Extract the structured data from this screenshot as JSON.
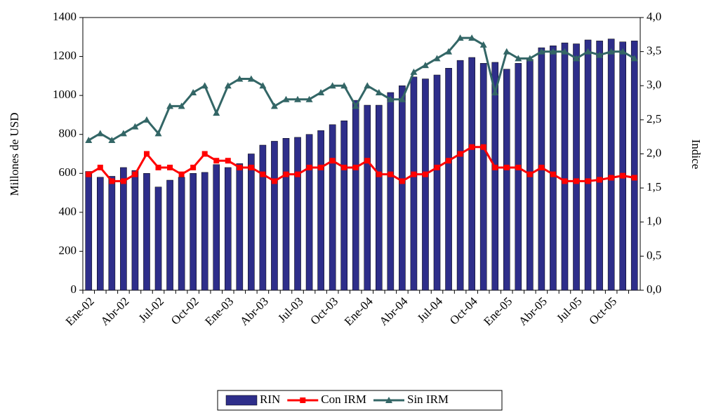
{
  "chart_data": {
    "type": "bar_line",
    "y_label": "Millones de USD",
    "y2_label": "Indice",
    "categories": [
      "Ene-02",
      null,
      null,
      "Abr-02",
      null,
      null,
      "Jul-02",
      null,
      null,
      "Oct-02",
      null,
      null,
      "Ene-03",
      null,
      null,
      "Abr-03",
      null,
      null,
      "Jul-03",
      null,
      null,
      "Oct-03",
      null,
      null,
      "Ene-04",
      null,
      null,
      "Abr-04",
      null,
      null,
      "Jul-04",
      null,
      null,
      "Oct-04",
      null,
      null,
      "Ene-05",
      null,
      null,
      "Abr-05",
      null,
      null,
      "Jul-05",
      null,
      null,
      "Oct-05",
      null,
      null
    ],
    "series": [
      {
        "name": "RIN",
        "color": "#2e2e8a",
        "kind": "bar",
        "values": [
          610,
          580,
          585,
          630,
          615,
          600,
          530,
          565,
          580,
          600,
          605,
          645,
          630,
          650,
          700,
          745,
          765,
          780,
          785,
          800,
          820,
          850,
          870,
          975,
          950,
          950,
          1015,
          1050,
          1095,
          1085,
          1105,
          1140,
          1180,
          1195,
          1165,
          1170,
          1135,
          1165,
          1185,
          1245,
          1255,
          1270,
          1265,
          1285,
          1280,
          1290,
          1275,
          1280
        ]
      },
      {
        "name": "Con IRM",
        "color": "#ff0000",
        "kind": "line",
        "marker": "square",
        "axis": "y2",
        "values": [
          1.7,
          1.8,
          1.6,
          1.6,
          1.7,
          2.0,
          1.8,
          1.8,
          1.7,
          1.8,
          2.0,
          1.9,
          1.9,
          1.8,
          1.8,
          1.7,
          1.6,
          1.7,
          1.7,
          1.8,
          1.8,
          1.9,
          1.8,
          1.8,
          1.9,
          1.7,
          1.7,
          1.6,
          1.7,
          1.7,
          1.8,
          1.9,
          2.0,
          2.1,
          2.1,
          1.8,
          1.8,
          1.8,
          1.7,
          1.8,
          1.7,
          1.6,
          1.6,
          1.6,
          1.62,
          1.65,
          1.68,
          1.65
        ]
      },
      {
        "name": "Sin IRM",
        "color": "#336666",
        "kind": "line",
        "marker": "triangle",
        "axis": "y2",
        "values": [
          2.2,
          2.3,
          2.2,
          2.3,
          2.4,
          2.5,
          2.3,
          2.7,
          2.7,
          2.9,
          3.0,
          2.6,
          3.0,
          3.1,
          3.1,
          3.0,
          2.7,
          2.8,
          2.8,
          2.8,
          2.9,
          3.0,
          3.0,
          2.7,
          3.0,
          2.9,
          2.8,
          2.8,
          3.2,
          3.3,
          3.4,
          3.5,
          3.7,
          3.7,
          3.6,
          2.9,
          3.5,
          3.4,
          3.4,
          3.5,
          3.5,
          3.5,
          3.4,
          3.5,
          3.45,
          3.5,
          3.5,
          3.4
        ]
      }
    ],
    "ylim": [
      0,
      1400
    ],
    "yticks": [
      0,
      200,
      400,
      600,
      800,
      1000,
      1200,
      1400
    ],
    "y2lim": [
      0,
      4
    ],
    "y2ticks": [
      {
        "value": 0,
        "label": "0,0"
      },
      {
        "value": 0.5,
        "label": "0,5"
      },
      {
        "value": 1,
        "label": "1,0"
      },
      {
        "value": 1.5,
        "label": "1,5"
      },
      {
        "value": 2,
        "label": "2,0"
      },
      {
        "value": 2.5,
        "label": "2,5"
      },
      {
        "value": 3,
        "label": "3,0"
      },
      {
        "value": 3.5,
        "label": "3,5"
      },
      {
        "value": 4,
        "label": "4,0"
      }
    ],
    "legend": "bottom"
  }
}
